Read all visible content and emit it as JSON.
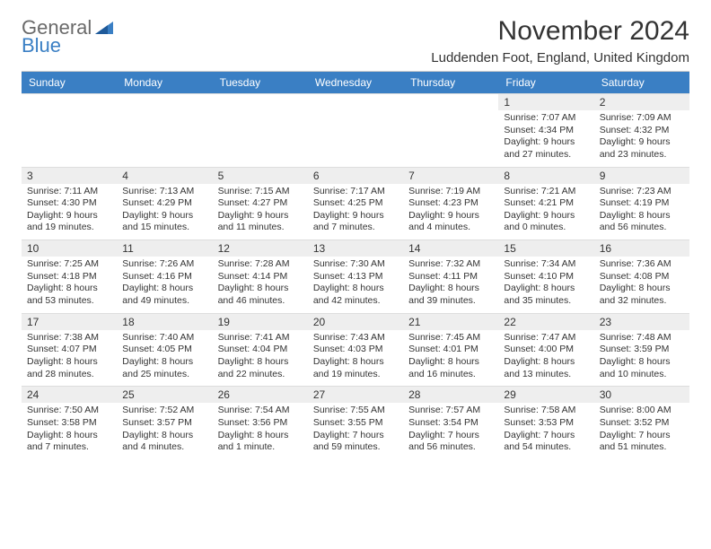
{
  "logo": {
    "general": "General",
    "blue": "Blue"
  },
  "title": "November 2024",
  "location": "Luddenden Foot, England, United Kingdom",
  "colors": {
    "header_bg": "#3a7fc4",
    "header_text": "#ffffff",
    "daynum_bg": "#eeeeee",
    "text": "#333333",
    "logo_gray": "#6a6a6a",
    "logo_blue": "#3a7fc4"
  },
  "day_headers": [
    "Sunday",
    "Monday",
    "Tuesday",
    "Wednesday",
    "Thursday",
    "Friday",
    "Saturday"
  ],
  "weeks": [
    [
      null,
      null,
      null,
      null,
      null,
      {
        "n": "1",
        "sunrise": "7:07 AM",
        "sunset": "4:34 PM",
        "daylight": "9 hours and 27 minutes."
      },
      {
        "n": "2",
        "sunrise": "7:09 AM",
        "sunset": "4:32 PM",
        "daylight": "9 hours and 23 minutes."
      }
    ],
    [
      {
        "n": "3",
        "sunrise": "7:11 AM",
        "sunset": "4:30 PM",
        "daylight": "9 hours and 19 minutes."
      },
      {
        "n": "4",
        "sunrise": "7:13 AM",
        "sunset": "4:29 PM",
        "daylight": "9 hours and 15 minutes."
      },
      {
        "n": "5",
        "sunrise": "7:15 AM",
        "sunset": "4:27 PM",
        "daylight": "9 hours and 11 minutes."
      },
      {
        "n": "6",
        "sunrise": "7:17 AM",
        "sunset": "4:25 PM",
        "daylight": "9 hours and 7 minutes."
      },
      {
        "n": "7",
        "sunrise": "7:19 AM",
        "sunset": "4:23 PM",
        "daylight": "9 hours and 4 minutes."
      },
      {
        "n": "8",
        "sunrise": "7:21 AM",
        "sunset": "4:21 PM",
        "daylight": "9 hours and 0 minutes."
      },
      {
        "n": "9",
        "sunrise": "7:23 AM",
        "sunset": "4:19 PM",
        "daylight": "8 hours and 56 minutes."
      }
    ],
    [
      {
        "n": "10",
        "sunrise": "7:25 AM",
        "sunset": "4:18 PM",
        "daylight": "8 hours and 53 minutes."
      },
      {
        "n": "11",
        "sunrise": "7:26 AM",
        "sunset": "4:16 PM",
        "daylight": "8 hours and 49 minutes."
      },
      {
        "n": "12",
        "sunrise": "7:28 AM",
        "sunset": "4:14 PM",
        "daylight": "8 hours and 46 minutes."
      },
      {
        "n": "13",
        "sunrise": "7:30 AM",
        "sunset": "4:13 PM",
        "daylight": "8 hours and 42 minutes."
      },
      {
        "n": "14",
        "sunrise": "7:32 AM",
        "sunset": "4:11 PM",
        "daylight": "8 hours and 39 minutes."
      },
      {
        "n": "15",
        "sunrise": "7:34 AM",
        "sunset": "4:10 PM",
        "daylight": "8 hours and 35 minutes."
      },
      {
        "n": "16",
        "sunrise": "7:36 AM",
        "sunset": "4:08 PM",
        "daylight": "8 hours and 32 minutes."
      }
    ],
    [
      {
        "n": "17",
        "sunrise": "7:38 AM",
        "sunset": "4:07 PM",
        "daylight": "8 hours and 28 minutes."
      },
      {
        "n": "18",
        "sunrise": "7:40 AM",
        "sunset": "4:05 PM",
        "daylight": "8 hours and 25 minutes."
      },
      {
        "n": "19",
        "sunrise": "7:41 AM",
        "sunset": "4:04 PM",
        "daylight": "8 hours and 22 minutes."
      },
      {
        "n": "20",
        "sunrise": "7:43 AM",
        "sunset": "4:03 PM",
        "daylight": "8 hours and 19 minutes."
      },
      {
        "n": "21",
        "sunrise": "7:45 AM",
        "sunset": "4:01 PM",
        "daylight": "8 hours and 16 minutes."
      },
      {
        "n": "22",
        "sunrise": "7:47 AM",
        "sunset": "4:00 PM",
        "daylight": "8 hours and 13 minutes."
      },
      {
        "n": "23",
        "sunrise": "7:48 AM",
        "sunset": "3:59 PM",
        "daylight": "8 hours and 10 minutes."
      }
    ],
    [
      {
        "n": "24",
        "sunrise": "7:50 AM",
        "sunset": "3:58 PM",
        "daylight": "8 hours and 7 minutes."
      },
      {
        "n": "25",
        "sunrise": "7:52 AM",
        "sunset": "3:57 PM",
        "daylight": "8 hours and 4 minutes."
      },
      {
        "n": "26",
        "sunrise": "7:54 AM",
        "sunset": "3:56 PM",
        "daylight": "8 hours and 1 minute."
      },
      {
        "n": "27",
        "sunrise": "7:55 AM",
        "sunset": "3:55 PM",
        "daylight": "7 hours and 59 minutes."
      },
      {
        "n": "28",
        "sunrise": "7:57 AM",
        "sunset": "3:54 PM",
        "daylight": "7 hours and 56 minutes."
      },
      {
        "n": "29",
        "sunrise": "7:58 AM",
        "sunset": "3:53 PM",
        "daylight": "7 hours and 54 minutes."
      },
      {
        "n": "30",
        "sunrise": "8:00 AM",
        "sunset": "3:52 PM",
        "daylight": "7 hours and 51 minutes."
      }
    ]
  ],
  "labels": {
    "sunrise": "Sunrise:",
    "sunset": "Sunset:",
    "daylight": "Daylight:"
  }
}
